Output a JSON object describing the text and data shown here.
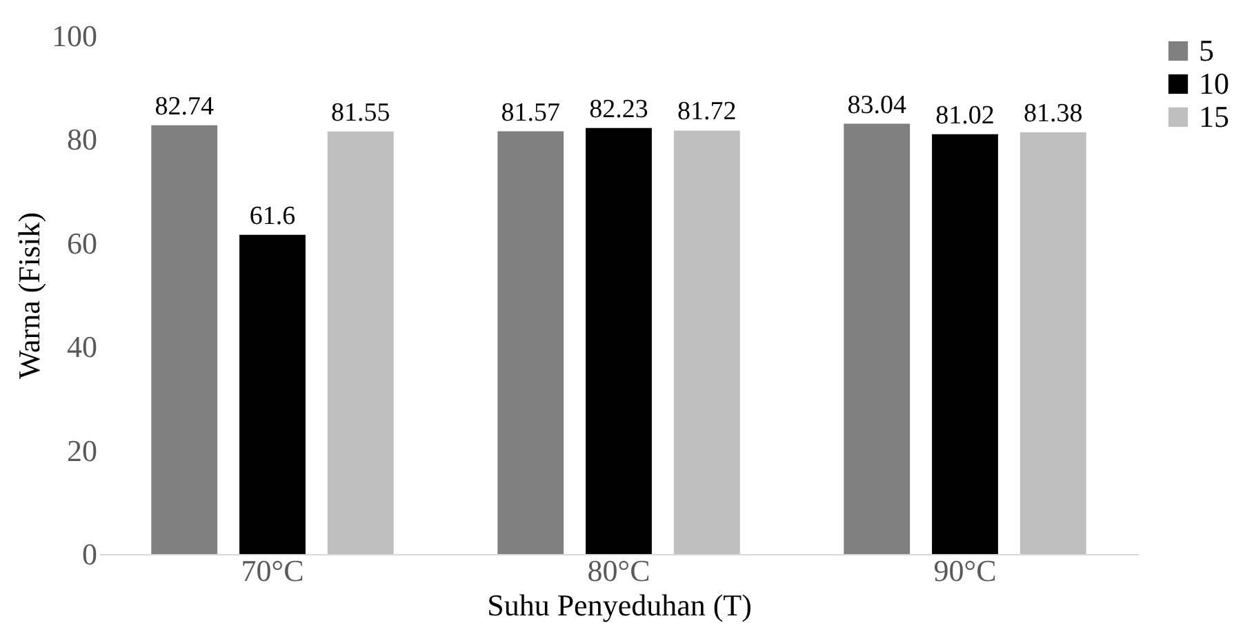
{
  "chart_data": {
    "type": "bar",
    "xlabel": "Suhu Penyeduhan (T)",
    "ylabel": "Warna (Fisik)",
    "categories": [
      "70°C",
      "80°C",
      "90°C"
    ],
    "series": [
      {
        "name": "5",
        "color": "#808080",
        "values": [
          82.74,
          81.57,
          83.04
        ]
      },
      {
        "name": "10",
        "color": "#000000",
        "values": [
          61.6,
          82.23,
          81.02
        ]
      },
      {
        "name": "15",
        "color": "#bfbfbf",
        "values": [
          81.55,
          81.72,
          81.38
        ]
      }
    ],
    "ylim": [
      0,
      100
    ],
    "yticks": [
      0,
      20,
      40,
      60,
      80,
      100
    ],
    "grid": false,
    "legend": "right",
    "data_labels": true
  }
}
